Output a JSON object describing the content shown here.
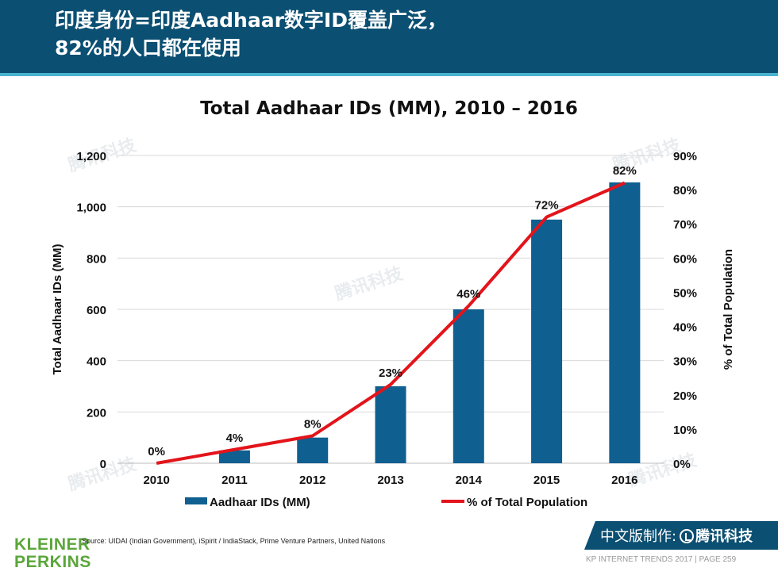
{
  "header": {
    "title_line1": "印度身份=印度Aadhaar数字ID覆盖广泛，",
    "title_line2": "82%的人口都在使用"
  },
  "chart_data": {
    "type": "bar",
    "title": "Total Aadhaar IDs (MM), 2010 – 2016",
    "categories": [
      "2010",
      "2011",
      "2012",
      "2013",
      "2014",
      "2015",
      "2016"
    ],
    "series": [
      {
        "name": "Aadhaar IDs (MM)",
        "type": "bar",
        "axis": "left",
        "color": "#0f5f91",
        "values": [
          0,
          50,
          100,
          300,
          600,
          950,
          1095
        ]
      },
      {
        "name": "% of Total Population",
        "type": "line",
        "axis": "right",
        "color": "#e3141b",
        "values": [
          0,
          4,
          8,
          23,
          46,
          72,
          82
        ],
        "labels": [
          "0%",
          "4%",
          "8%",
          "23%",
          "46%",
          "72%",
          "82%"
        ]
      }
    ],
    "ylabel": "Total Aadhaar IDs (MM)",
    "ylim": [
      0,
      1200
    ],
    "yticks": [
      "0",
      "200",
      "400",
      "600",
      "800",
      "1,000",
      "1,200"
    ],
    "y2label": "% of Total Population",
    "y2lim": [
      0,
      90
    ],
    "y2ticks": [
      "0%",
      "10%",
      "20%",
      "30%",
      "40%",
      "50%",
      "60%",
      "70%",
      "80%",
      "90%"
    ],
    "grid": true,
    "legend_position": "bottom"
  },
  "source": "Source: UIDAI (Indian Government), iSpirit / IndiaStack, Prime Venture Partners, United Nations",
  "logo": {
    "line1": "KLEINER",
    "line2": "PERKINS"
  },
  "cn_banner": {
    "label": "中文版制作:",
    "brand": "腾讯科技"
  },
  "footer": "KP INTERNET TRENDS 2017  |  PAGE 259",
  "watermark": "腾讯科技",
  "colors": {
    "header": "#0b4f72",
    "accent_line": "#4ab3cf",
    "bar": "#0f5f91",
    "line": "#e3141b",
    "logo": "#5aa63a",
    "banner": "#0b4f72"
  }
}
